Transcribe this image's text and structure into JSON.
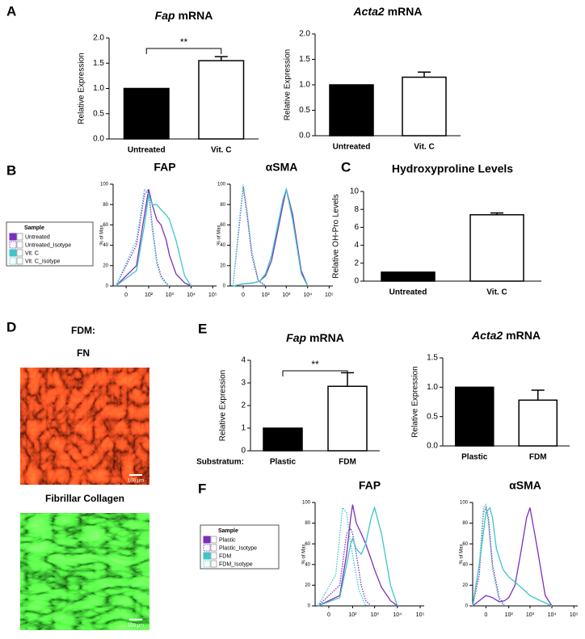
{
  "panel_labels": [
    "A",
    "B",
    "C",
    "D",
    "E",
    "F"
  ],
  "fdm_label": "FDM:",
  "fn_label": "FN",
  "collagen_label": "Fibrillar Collagen",
  "scale_bar_labels": [
    "100 µm",
    "100 µm"
  ],
  "chart_data": [
    {
      "type": "bar",
      "title_italic": "Fap",
      "title": "mRNA",
      "ylabel": "Relative Expression",
      "categories": [
        "Untreated",
        "Vit. C"
      ],
      "values": [
        1.0,
        1.55
      ],
      "errors": [
        null,
        0.08
      ],
      "colors": [
        "#000000",
        "#ffffff"
      ],
      "significance": "**",
      "ylim": [
        0,
        2
      ],
      "yticks": [
        {
          "value": 0,
          "label": "0.0"
        },
        0.5,
        {
          "value": 1,
          "label": "1.0"
        },
        1.5,
        {
          "value": 2,
          "label": "2.0"
        }
      ]
    },
    {
      "type": "bar",
      "title_italic": "Acta2",
      "title": "mRNA",
      "ylabel": "Relative Expression",
      "categories": [
        "Untreated",
        "Vit. C"
      ],
      "values": [
        1.0,
        1.15
      ],
      "errors": [
        null,
        0.1
      ],
      "colors": [
        "#000000",
        "#ffffff"
      ],
      "ylim": [
        0,
        2
      ],
      "yticks": [
        {
          "value": 0,
          "label": "0.0"
        },
        0.5,
        {
          "value": 1,
          "label": "1.0"
        },
        1.5,
        {
          "value": 2,
          "label": "2.0"
        }
      ]
    },
    {
      "type": "line",
      "title": "FAP",
      "ylabel": "% of Max",
      "xscale": "symlog",
      "legend": "left",
      "legend_title": "Sample",
      "xlim": [
        -30,
        150000
      ],
      "xticks": [
        0,
        {
          "value": 100,
          "label": "10²"
        },
        {
          "value": 1000,
          "label": "10³"
        },
        {
          "value": 10000,
          "label": "10⁴"
        },
        {
          "value": 100000,
          "label": "10⁵"
        }
      ],
      "ylim": [
        0,
        100
      ],
      "yticks": [
        0,
        20,
        40,
        60,
        80,
        100
      ],
      "series": [
        {
          "name": "Untreated",
          "color": "#7b2fbe",
          "style": "solid",
          "x": [
            -20,
            20,
            60,
            100,
            150,
            250,
            400,
            700,
            1000,
            2000,
            5000,
            10000
          ],
          "values": [
            0,
            20,
            70,
            95,
            80,
            65,
            60,
            45,
            30,
            12,
            3,
            0
          ]
        },
        {
          "name": "Untreated_Isotype",
          "color": "#7b2fbe",
          "style": "dotted",
          "x": [
            -20,
            20,
            60,
            100,
            150,
            250,
            400,
            700,
            1000
          ],
          "values": [
            0,
            40,
            90,
            95,
            60,
            25,
            10,
            3,
            0
          ]
        },
        {
          "name": "Vit. C",
          "color": "#3ec6c6",
          "style": "solid",
          "x": [
            -20,
            20,
            60,
            100,
            150,
            250,
            400,
            700,
            1000,
            2000,
            5000,
            10000
          ],
          "values": [
            0,
            15,
            60,
            90,
            80,
            80,
            75,
            70,
            65,
            45,
            10,
            0
          ]
        },
        {
          "name": "Vit. C_Isotype",
          "color": "#3ec6c6",
          "style": "dotted",
          "x": [
            -20,
            20,
            60,
            100,
            150,
            250,
            400,
            700,
            1000
          ],
          "values": [
            0,
            45,
            95,
            90,
            55,
            22,
            8,
            2,
            0
          ]
        }
      ]
    },
    {
      "type": "line",
      "title": "αSMA",
      "ylabel": "% of Max",
      "xscale": "symlog",
      "xlim": [
        -30,
        150000
      ],
      "xticks": [
        0,
        {
          "value": 100,
          "label": "10²"
        },
        {
          "value": 1000,
          "label": "10³"
        },
        {
          "value": 10000,
          "label": "10⁴"
        },
        {
          "value": 100000,
          "label": "10⁵"
        }
      ],
      "ylim": [
        0,
        100
      ],
      "yticks": [
        0,
        20,
        40,
        60,
        80,
        100
      ],
      "series": [
        {
          "name": "Untreated",
          "color": "#7b2fbe",
          "style": "solid",
          "x": [
            -20,
            0,
            20,
            50,
            100,
            200,
            400,
            700,
            1000,
            2000,
            5000,
            10000
          ],
          "values": [
            0,
            2,
            3,
            5,
            10,
            25,
            55,
            80,
            95,
            70,
            15,
            0
          ]
        },
        {
          "name": "Untreated_Isotype",
          "color": "#7b2fbe",
          "style": "dotted",
          "x": [
            -20,
            -5,
            0,
            5,
            15,
            40,
            100
          ],
          "values": [
            0,
            60,
            97,
            70,
            30,
            5,
            0
          ]
        },
        {
          "name": "Vit. C",
          "color": "#3ec6c6",
          "style": "solid",
          "x": [
            -20,
            0,
            20,
            50,
            100,
            200,
            400,
            700,
            1000,
            2000,
            5000,
            10000
          ],
          "values": [
            0,
            2,
            3,
            5,
            12,
            30,
            60,
            85,
            95,
            65,
            12,
            0
          ]
        },
        {
          "name": "Vit. C_Isotype",
          "color": "#3ec6c6",
          "style": "dotted",
          "x": [
            -20,
            -5,
            0,
            5,
            15,
            40,
            100
          ],
          "values": [
            0,
            65,
            100,
            75,
            35,
            6,
            0
          ]
        }
      ]
    },
    {
      "type": "bar",
      "title": "Hydroxyproline Levels",
      "ylabel": "Relative OH-Pro Levels",
      "categories": [
        "Untreated",
        "Vit. C"
      ],
      "values": [
        1.0,
        7.4
      ],
      "errors": [
        null,
        0.2
      ],
      "colors": [
        "#000000",
        "#ffffff"
      ],
      "ylim": [
        0,
        10
      ],
      "yticks": [
        0,
        2,
        4,
        6,
        8,
        10
      ]
    },
    {
      "type": "bar",
      "title_italic": "Fap",
      "title": "mRNA",
      "ylabel": "Relative Expression",
      "xlabel": "Substratum:",
      "categories": [
        "Plastic",
        "FDM"
      ],
      "values": [
        1.0,
        2.85
      ],
      "errors": [
        null,
        0.6
      ],
      "colors": [
        "#000000",
        "#ffffff"
      ],
      "significance": "**",
      "ylim": [
        0,
        4
      ],
      "yticks": [
        0,
        1,
        2,
        3,
        4
      ]
    },
    {
      "type": "bar",
      "title_italic": "Acta2",
      "title": "mRNA",
      "ylabel": "Relative Expression",
      "categories": [
        "Plastic",
        "FDM"
      ],
      "values": [
        1.0,
        0.78
      ],
      "errors": [
        null,
        0.17
      ],
      "colors": [
        "#000000",
        "#ffffff"
      ],
      "ylim": [
        0,
        1.5
      ],
      "yticks": [
        {
          "value": 0,
          "label": "0.0"
        },
        0.5,
        {
          "value": 1,
          "label": "1.0"
        },
        1.5
      ]
    },
    {
      "type": "line",
      "title": "FAP",
      "ylabel": "% of Max",
      "xscale": "symlog",
      "legend": "left",
      "legend_title": "Sample",
      "xlim": [
        -30,
        150000
      ],
      "xticks": [
        0,
        {
          "value": 100,
          "label": "10²"
        },
        {
          "value": 1000,
          "label": "10³"
        },
        {
          "value": 10000,
          "label": "10⁴"
        },
        {
          "value": 100000,
          "label": "10⁵"
        }
      ],
      "ylim": [
        0,
        100
      ],
      "yticks": [
        0,
        20,
        40,
        60,
        80,
        100
      ],
      "series": [
        {
          "name": "Plastic",
          "color": "#7b2fbe",
          "style": "solid",
          "x": [
            -20,
            20,
            50,
            80,
            100,
            150,
            250,
            400,
            700,
            1000,
            2000,
            5000,
            10000
          ],
          "values": [
            0,
            10,
            50,
            85,
            98,
            80,
            70,
            60,
            45,
            35,
            18,
            5,
            0
          ]
        },
        {
          "name": "Plastic_Isotype",
          "color": "#7b2fbe",
          "style": "dotted",
          "x": [
            -20,
            20,
            50,
            80,
            100,
            150,
            250,
            400,
            700
          ],
          "values": [
            0,
            20,
            70,
            75,
            70,
            50,
            20,
            5,
            0
          ]
        },
        {
          "name": "FDM",
          "color": "#3ec6c6",
          "style": "solid",
          "x": [
            -20,
            20,
            50,
            80,
            100,
            150,
            250,
            400,
            700,
            1000,
            2000,
            5000,
            10000
          ],
          "values": [
            0,
            8,
            40,
            60,
            65,
            55,
            50,
            60,
            85,
            95,
            70,
            20,
            0
          ]
        },
        {
          "name": "FDM_Isotype",
          "color": "#3ec6c6",
          "style": "dotted",
          "x": [
            -20,
            10,
            30,
            50,
            80,
            120,
            200,
            400
          ],
          "values": [
            0,
            30,
            95,
            90,
            60,
            40,
            15,
            0
          ]
        }
      ]
    },
    {
      "type": "line",
      "title": "αSMA",
      "ylabel": "% of Max",
      "xscale": "symlog",
      "xlim": [
        -30,
        150000
      ],
      "xticks": [
        0,
        {
          "value": 100,
          "label": "10²"
        },
        {
          "value": 1000,
          "label": "10³"
        },
        {
          "value": 10000,
          "label": "10⁴"
        },
        {
          "value": 100000,
          "label": "10⁵"
        }
      ],
      "ylim": [
        0,
        100
      ],
      "yticks": [
        0,
        20,
        40,
        60,
        80,
        100
      ],
      "series": [
        {
          "name": "Plastic",
          "color": "#7b2fbe",
          "style": "solid",
          "x": [
            -30,
            -10,
            0,
            10,
            30,
            60,
            100,
            200,
            400,
            700,
            1000,
            2000,
            5000,
            10000
          ],
          "values": [
            0,
            5,
            10,
            8,
            4,
            5,
            8,
            20,
            55,
            85,
            95,
            60,
            10,
            0
          ]
        },
        {
          "name": "Plastic_Isotype",
          "color": "#7b2fbe",
          "style": "dotted",
          "x": [
            -30,
            -10,
            -3,
            0,
            3,
            10,
            30,
            60
          ],
          "values": [
            0,
            30,
            90,
            95,
            85,
            40,
            8,
            0
          ]
        },
        {
          "name": "FDM",
          "color": "#3ec6c6",
          "style": "solid",
          "x": [
            -30,
            -10,
            0,
            5,
            10,
            20,
            50,
            100,
            300,
            1000,
            3000,
            10000
          ],
          "values": [
            0,
            40,
            90,
            95,
            85,
            55,
            35,
            28,
            20,
            10,
            5,
            0
          ]
        },
        {
          "name": "FDM_Isotype",
          "color": "#3ec6c6",
          "style": "dotted",
          "x": [
            -30,
            -10,
            -3,
            0,
            3,
            10,
            30,
            60
          ],
          "values": [
            0,
            40,
            95,
            98,
            80,
            35,
            5,
            0
          ]
        }
      ]
    }
  ]
}
